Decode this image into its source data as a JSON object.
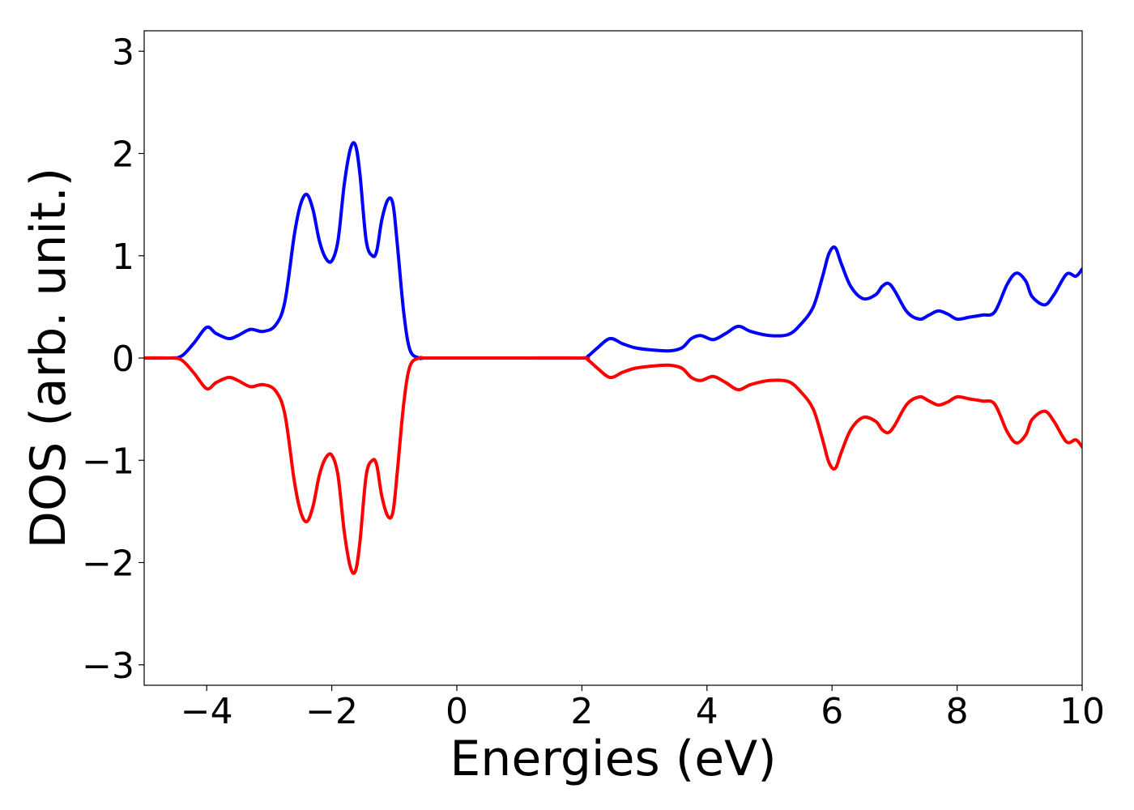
{
  "chart_data": {
    "type": "line",
    "xlabel": "Energies (eV)",
    "ylabel": "DOS (arb. unit.)",
    "xlim": [
      -5,
      10
    ],
    "ylim": [
      -3.2,
      3.2
    ],
    "xticks": [
      -4,
      -2,
      0,
      2,
      4,
      6,
      8,
      10
    ],
    "xtick_labels": [
      "−4",
      "−2",
      "0",
      "2",
      "4",
      "6",
      "8",
      "10"
    ],
    "yticks": [
      3,
      2,
      1,
      0,
      -1,
      -2,
      -3
    ],
    "ytick_labels": [
      "3",
      "2",
      "1",
      "0",
      "−1",
      "−2",
      "−3"
    ],
    "grid": false,
    "series": [
      {
        "color": "#0000ff",
        "x": [
          -5.0,
          -4.6,
          -4.4,
          -4.2,
          -4.0,
          -3.85,
          -3.65,
          -3.5,
          -3.3,
          -3.1,
          -2.9,
          -2.75,
          -2.6,
          -2.5,
          -2.4,
          -2.3,
          -2.2,
          -2.1,
          -2.0,
          -1.9,
          -1.8,
          -1.7,
          -1.62,
          -1.55,
          -1.45,
          -1.35,
          -1.28,
          -1.2,
          -1.1,
          -1.02,
          -0.95,
          -0.85,
          -0.75,
          -0.6,
          -0.5,
          0.0,
          1.0,
          2.0,
          2.1,
          2.25,
          2.45,
          2.65,
          2.85,
          3.1,
          3.4,
          3.6,
          3.75,
          3.9,
          4.1,
          4.3,
          4.5,
          4.7,
          5.0,
          5.3,
          5.5,
          5.7,
          5.85,
          5.95,
          6.05,
          6.15,
          6.3,
          6.5,
          6.7,
          6.8,
          6.9,
          7.0,
          7.2,
          7.4,
          7.55,
          7.7,
          7.85,
          8.0,
          8.2,
          8.4,
          8.6,
          8.8,
          8.95,
          9.1,
          9.2,
          9.4,
          9.55,
          9.75,
          9.9,
          10.0
        ],
        "values": [
          0.0,
          0.0,
          0.02,
          0.15,
          0.3,
          0.24,
          0.19,
          0.22,
          0.28,
          0.26,
          0.32,
          0.55,
          1.2,
          1.5,
          1.6,
          1.45,
          1.15,
          0.98,
          0.95,
          1.15,
          1.7,
          2.05,
          2.08,
          1.8,
          1.15,
          1.0,
          1.05,
          1.35,
          1.55,
          1.5,
          1.1,
          0.45,
          0.08,
          0.0,
          0.0,
          0.0,
          0.0,
          0.0,
          0.02,
          0.1,
          0.19,
          0.14,
          0.1,
          0.08,
          0.07,
          0.1,
          0.19,
          0.22,
          0.18,
          0.24,
          0.31,
          0.26,
          0.22,
          0.23,
          0.33,
          0.5,
          0.8,
          1.02,
          1.08,
          0.92,
          0.7,
          0.58,
          0.62,
          0.7,
          0.73,
          0.66,
          0.45,
          0.38,
          0.42,
          0.46,
          0.43,
          0.38,
          0.4,
          0.42,
          0.45,
          0.72,
          0.83,
          0.75,
          0.6,
          0.52,
          0.62,
          0.82,
          0.8,
          0.87
        ]
      },
      {
        "color": "#ff0000",
        "x": [
          -5.0,
          -4.6,
          -4.4,
          -4.2,
          -4.0,
          -3.85,
          -3.65,
          -3.5,
          -3.3,
          -3.1,
          -2.9,
          -2.75,
          -2.6,
          -2.5,
          -2.4,
          -2.3,
          -2.2,
          -2.1,
          -2.0,
          -1.9,
          -1.8,
          -1.7,
          -1.62,
          -1.55,
          -1.45,
          -1.35,
          -1.28,
          -1.2,
          -1.1,
          -1.02,
          -0.95,
          -0.85,
          -0.75,
          -0.6,
          -0.5,
          0.0,
          1.0,
          2.0,
          2.1,
          2.25,
          2.45,
          2.65,
          2.85,
          3.1,
          3.4,
          3.6,
          3.75,
          3.9,
          4.1,
          4.3,
          4.5,
          4.7,
          5.0,
          5.3,
          5.5,
          5.7,
          5.85,
          5.95,
          6.05,
          6.15,
          6.3,
          6.5,
          6.7,
          6.8,
          6.9,
          7.0,
          7.2,
          7.4,
          7.55,
          7.7,
          7.85,
          8.0,
          8.2,
          8.4,
          8.6,
          8.8,
          8.95,
          9.1,
          9.2,
          9.4,
          9.55,
          9.75,
          9.9,
          10.0
        ],
        "values": [
          0.0,
          0.0,
          -0.02,
          -0.15,
          -0.3,
          -0.24,
          -0.19,
          -0.22,
          -0.28,
          -0.26,
          -0.32,
          -0.55,
          -1.2,
          -1.5,
          -1.6,
          -1.45,
          -1.15,
          -0.98,
          -0.95,
          -1.15,
          -1.7,
          -2.05,
          -2.08,
          -1.8,
          -1.15,
          -1.0,
          -1.05,
          -1.35,
          -1.55,
          -1.5,
          -1.1,
          -0.45,
          -0.08,
          0.0,
          0.0,
          0.0,
          0.0,
          0.0,
          -0.02,
          -0.1,
          -0.19,
          -0.14,
          -0.1,
          -0.08,
          -0.07,
          -0.1,
          -0.19,
          -0.22,
          -0.18,
          -0.24,
          -0.31,
          -0.26,
          -0.22,
          -0.23,
          -0.33,
          -0.5,
          -0.8,
          -1.02,
          -1.08,
          -0.92,
          -0.7,
          -0.58,
          -0.62,
          -0.7,
          -0.73,
          -0.66,
          -0.45,
          -0.38,
          -0.42,
          -0.46,
          -0.43,
          -0.38,
          -0.4,
          -0.42,
          -0.45,
          -0.72,
          -0.83,
          -0.75,
          -0.6,
          -0.52,
          -0.62,
          -0.82,
          -0.8,
          -0.87
        ]
      }
    ]
  }
}
